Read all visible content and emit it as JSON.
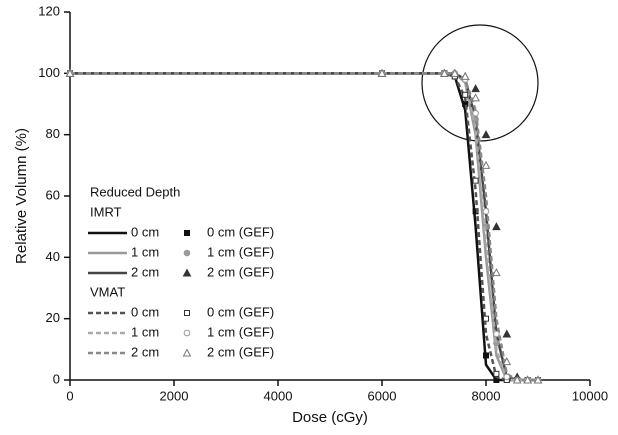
{
  "chart_data": {
    "type": "line",
    "x_label": "Dose (cGy)",
    "y_label": "Relative Volumn (%)",
    "x": [
      0,
      6000,
      7200,
      7400,
      7600,
      7800,
      8000,
      8200,
      8400,
      8600,
      8800,
      9000
    ],
    "xlim": [
      0,
      10000
    ],
    "xticks": [
      0,
      2000,
      4000,
      6000,
      8000,
      10000
    ],
    "ylim": [
      0,
      120
    ],
    "yticks": [
      0,
      20,
      40,
      60,
      80,
      100,
      120
    ],
    "legend_title": "Reduced Depth",
    "groups": [
      {
        "name": "IMRT",
        "series": [
          {
            "name": "0 cm",
            "color": "#111111",
            "style": "solid",
            "values": [
              100,
              100,
              100,
              99,
              88,
              50,
              5,
              0,
              0,
              0,
              0,
              0
            ]
          },
          {
            "name": "1 cm",
            "color": "#999999",
            "style": "solid",
            "values": [
              100,
              100,
              100,
              100,
              97,
              80,
              40,
              8,
              0,
              0,
              0,
              0
            ]
          },
          {
            "name": "2 cm",
            "color": "#444444",
            "style": "solid",
            "values": [
              100,
              100,
              100,
              100,
              98,
              85,
              55,
              15,
              1,
              0,
              0,
              0
            ]
          },
          {
            "name": "0 cm (GEF)",
            "color": "#111111",
            "marker": "square",
            "filled": true,
            "values": [
              100,
              100,
              100,
              99,
              90,
              55,
              8,
              0,
              0,
              0,
              0,
              0
            ]
          },
          {
            "name": "1 cm (GEF)",
            "color": "#999999",
            "marker": "circle",
            "filled": true,
            "values": [
              100,
              100,
              100,
              100,
              98,
              85,
              50,
              12,
              1,
              0,
              0,
              0
            ]
          },
          {
            "name": "2 cm (GEF)",
            "color": "#333333",
            "marker": "triangle",
            "filled": true,
            "values": [
              100,
              100,
              100,
              100,
              99,
              95,
              80,
              50,
              15,
              1,
              0,
              0
            ]
          }
        ]
      },
      {
        "name": "VMAT",
        "series": [
          {
            "name": "0 cm",
            "color": "#555555",
            "style": "dashed",
            "values": [
              100,
              100,
              100,
              99,
              92,
              62,
              15,
              1,
              0,
              0,
              0,
              0
            ]
          },
          {
            "name": "1 cm",
            "color": "#aaaaaa",
            "style": "dashed",
            "values": [
              100,
              100,
              100,
              100,
              97,
              82,
              45,
              10,
              0,
              0,
              0,
              0
            ]
          },
          {
            "name": "2 cm",
            "color": "#888888",
            "style": "dashed",
            "values": [
              100,
              100,
              100,
              100,
              98,
              88,
              60,
              20,
              2,
              0,
              0,
              0
            ]
          },
          {
            "name": "0 cm (GEF)",
            "color": "#333333",
            "marker": "square",
            "filled": false,
            "values": [
              100,
              100,
              100,
              99,
              93,
              65,
              20,
              2,
              0,
              0,
              0,
              0
            ]
          },
          {
            "name": "1 cm (GEF)",
            "color": "#999999",
            "marker": "circle",
            "filled": false,
            "values": [
              100,
              100,
              100,
              100,
              98,
              87,
              55,
              15,
              1,
              0,
              0,
              0
            ]
          },
          {
            "name": "2 cm (GEF)",
            "color": "#777777",
            "marker": "triangle",
            "filled": false,
            "values": [
              100,
              100,
              100,
              100,
              99,
              92,
              70,
              35,
              6,
              0,
              0,
              0
            ]
          }
        ]
      }
    ]
  }
}
